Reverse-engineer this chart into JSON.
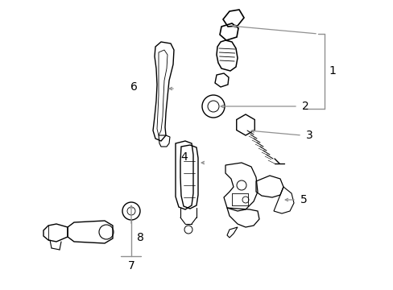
{
  "bg_color": "#ffffff",
  "line_color": "#000000",
  "gray_line_color": "#909090",
  "fig_width": 4.89,
  "fig_height": 3.6,
  "dpi": 100,
  "label_fontsize": 9,
  "label_fontsize_big": 10
}
